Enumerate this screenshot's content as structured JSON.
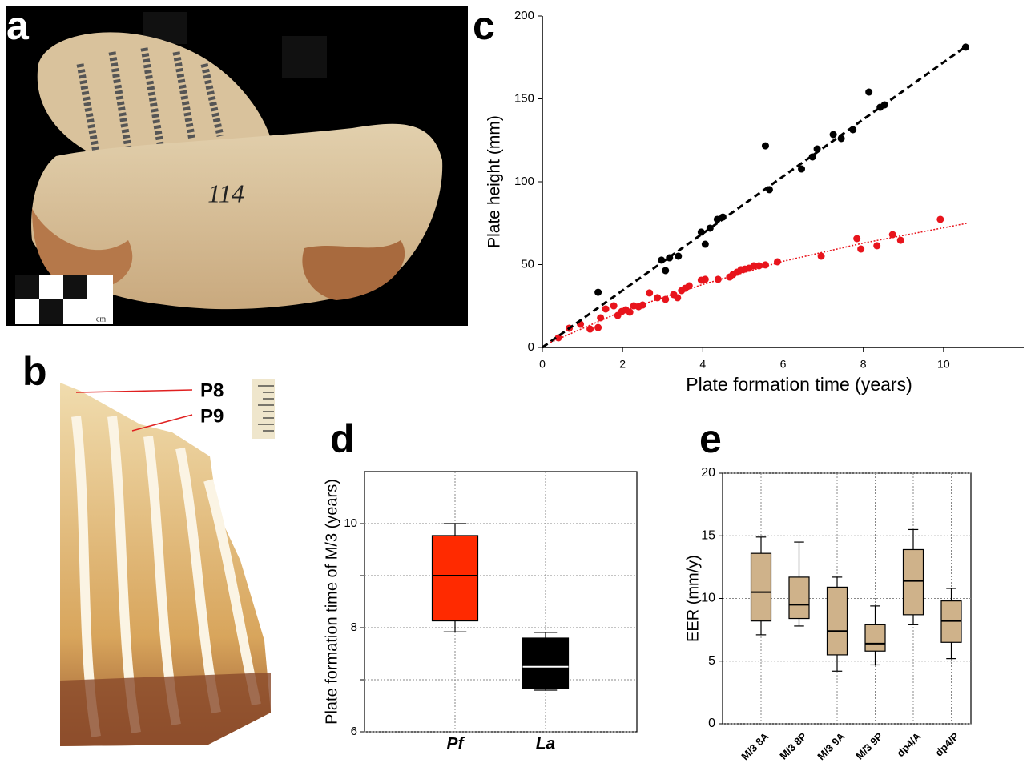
{
  "panel_labels": [
    "a",
    "b",
    "c",
    "d",
    "e"
  ],
  "photos": {
    "a": {
      "inscription": "114",
      "scale_label": "cm"
    },
    "b": {
      "labels": [
        "P8",
        "P9"
      ]
    }
  },
  "chart_data": [
    {
      "type": "scatter",
      "xlabel": "Plate formation time (years)",
      "ylabel": "Plate height (mm)",
      "xlim": [
        0,
        12
      ],
      "ylim": [
        0,
        200
      ],
      "xticks": [
        0,
        2,
        4,
        6,
        8,
        10
      ],
      "yticks": [
        0,
        50,
        100,
        150,
        200
      ],
      "series": [
        {
          "kind": "points",
          "color": "#000000",
          "x": [
            1.39,
            2.97,
            3.07,
            3.17,
            3.39,
            3.96,
            4.06,
            4.18,
            4.36,
            4.5,
            5.56,
            5.66,
            6.46,
            6.73,
            6.85,
            7.25,
            7.45,
            7.74,
            8.14,
            8.42,
            8.53,
            10.55
          ],
          "values": [
            33.3,
            52.7,
            46.4,
            54.1,
            55.1,
            69.6,
            62.3,
            72,
            77.3,
            78.7,
            121.7,
            95.2,
            107.7,
            115,
            119.8,
            128.5,
            126.1,
            131.4,
            154.1,
            144.9,
            146.4,
            181.2
          ]
        },
        {
          "kind": "points",
          "color": "#e8141c",
          "x": [
            0.4,
            0.67,
            0.95,
            1.19,
            1.39,
            1.45,
            1.58,
            1.78,
            1.88,
            1.98,
            2.08,
            2.18,
            2.28,
            2.4,
            2.5,
            2.67,
            2.87,
            3.07,
            3.27,
            3.37,
            3.47,
            3.56,
            3.66,
            3.96,
            4.06,
            4.38,
            4.67,
            4.75,
            4.85,
            4.95,
            5.05,
            5.15,
            5.27,
            5.4,
            5.56,
            5.86,
            6.95,
            7.84,
            7.94,
            8.34,
            8.73,
            8.93,
            9.92
          ],
          "values": [
            5.8,
            11.6,
            14,
            11.1,
            12,
            17.9,
            23.2,
            25.1,
            19.3,
            21.7,
            22.7,
            21.3,
            25.1,
            24.6,
            25.6,
            32.9,
            30,
            29,
            31.9,
            30,
            34.3,
            35.7,
            37.2,
            40.6,
            41.1,
            41.1,
            42.5,
            44,
            45.4,
            46.9,
            47.3,
            47.8,
            49.3,
            49.3,
            49.8,
            51.7,
            55.1,
            65.7,
            59.4,
            61.4,
            68.1,
            64.7,
            77.3
          ]
        },
        {
          "kind": "line",
          "style": "dashed",
          "color": "#000000",
          "x": [
            0,
            10.55
          ],
          "values": [
            0,
            181.5
          ]
        },
        {
          "kind": "line",
          "style": "dotted",
          "color": "#e8141c",
          "x": [
            0.2,
            2,
            4,
            6,
            8,
            10.6
          ],
          "values": [
            3,
            22,
            38,
            52,
            63,
            75
          ]
        }
      ]
    },
    {
      "type": "box",
      "ylabel": "Plate formation time of M/3 (years)",
      "ylim": [
        6,
        11
      ],
      "yticks": [
        6,
        8,
        10
      ],
      "minor_yticks": [
        7,
        9
      ],
      "grid": true,
      "categories": [
        "Pf",
        "La"
      ],
      "whisker_high": [
        10,
        7.91
      ],
      "q3": [
        9.77,
        7.8
      ],
      "median": [
        9.0,
        7.25
      ],
      "q1": [
        8.13,
        6.83
      ],
      "whisker_low": [
        7.92,
        6.8
      ],
      "colors": [
        "#ff2a00",
        "#000000"
      ],
      "median_colors": [
        "#000000",
        "#ffffff"
      ]
    },
    {
      "type": "box",
      "ylabel": "EER (mm/y)",
      "ylim": [
        0,
        20
      ],
      "yticks": [
        0,
        5,
        10,
        15,
        20
      ],
      "grid": true,
      "categories": [
        "M/3 8A",
        "M/3 8P",
        "M/3 9A",
        "M/3 9P",
        "dp4/A",
        "dp4/P"
      ],
      "whisker_high": [
        14.9,
        14.5,
        11.7,
        9.4,
        15.5,
        10.8
      ],
      "q3": [
        13.6,
        11.7,
        10.9,
        7.9,
        13.9,
        9.8
      ],
      "median": [
        10.5,
        9.5,
        7.4,
        6.4,
        11.4,
        8.2
      ],
      "q1": [
        8.2,
        8.4,
        5.5,
        5.8,
        8.7,
        6.5
      ],
      "whisker_low": [
        7.1,
        7.8,
        4.2,
        4.7,
        7.9,
        5.2
      ],
      "colors": [
        "#cfb28a",
        "#cfb28a",
        "#cfb28a",
        "#cfb28a",
        "#cfb28a",
        "#cfb28a"
      ],
      "median_colors": [
        "#000000",
        "#000000",
        "#000000",
        "#000000",
        "#000000",
        "#000000"
      ]
    }
  ]
}
